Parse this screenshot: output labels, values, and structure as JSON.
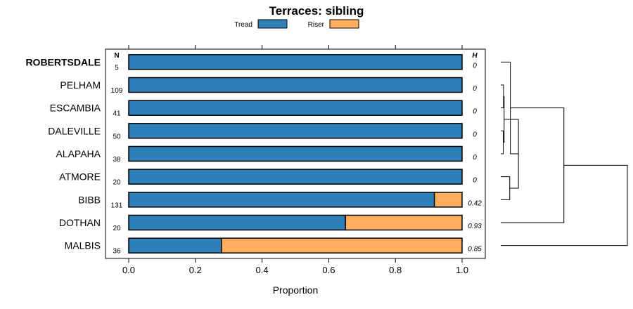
{
  "chart_data": {
    "type": "bar",
    "orientation": "horizontal",
    "stacked": true,
    "title": "Terraces: sibling",
    "xlabel": "Proportion",
    "xlim": [
      0,
      1
    ],
    "xticks": [
      "0.0",
      "0.2",
      "0.4",
      "0.6",
      "0.8",
      "1.0"
    ],
    "xtick_values": [
      0,
      0.2,
      0.4,
      0.6,
      0.8,
      1.0
    ],
    "legend_placement": "top",
    "n_header": "N",
    "h_header": "H",
    "series": [
      {
        "name": "Tread",
        "color": "#2e80b8"
      },
      {
        "name": "Riser",
        "color": "#ffad5f"
      }
    ],
    "rows": [
      {
        "category": "ROBERTSDALE",
        "bold": true,
        "n": "5",
        "h": "0",
        "values": [
          1.0,
          0.0
        ]
      },
      {
        "category": "PELHAM",
        "bold": false,
        "n": "109",
        "h": "0",
        "values": [
          1.0,
          0.0
        ]
      },
      {
        "category": "ESCAMBIA",
        "bold": false,
        "n": "41",
        "h": "0",
        "values": [
          1.0,
          0.0
        ]
      },
      {
        "category": "DALEVILLE",
        "bold": false,
        "n": "50",
        "h": "0",
        "values": [
          1.0,
          0.0
        ]
      },
      {
        "category": "ALAPAHA",
        "bold": false,
        "n": "38",
        "h": "0",
        "values": [
          1.0,
          0.0
        ]
      },
      {
        "category": "ATMORE",
        "bold": false,
        "n": "20",
        "h": "0",
        "values": [
          1.0,
          0.0
        ]
      },
      {
        "category": "BIBB",
        "bold": false,
        "n": "131",
        "h": "0.42",
        "values": [
          0.917,
          0.083
        ]
      },
      {
        "category": "DOTHAN",
        "bold": false,
        "n": "20",
        "h": "0.93",
        "values": [
          0.65,
          0.35
        ]
      },
      {
        "category": "MALBIS",
        "bold": false,
        "n": "36",
        "h": "0.85",
        "values": [
          0.278,
          0.722
        ]
      }
    ],
    "dendrogram": {
      "leaf_order": [
        "ROBERTSDALE",
        "PELHAM",
        "ESCAMBIA",
        "DALEVILLE",
        "ALAPAHA",
        "ATMORE",
        "BIBB",
        "DOTHAN",
        "MALBIS"
      ],
      "merges": [
        {
          "a": "PELHAM",
          "b": "ESCAMBIA",
          "height": 0.005
        },
        {
          "a": "DALEVILLE",
          "b": "ALAPAHA",
          "height": 0.003
        },
        {
          "a": "ATMORE",
          "b": "BIBB",
          "height": 0.055
        },
        {
          "a": "m0",
          "b": "m1",
          "height": 0.01
        },
        {
          "a": "m3",
          "b": "m2",
          "height": 0.125
        },
        {
          "a": "ROBERTSDALE",
          "b": "m4",
          "height": 0.06
        },
        {
          "a": "m5",
          "b": "DOTHAN",
          "height": 0.49
        },
        {
          "a": "m6",
          "b": "MALBIS",
          "height": 1.0
        }
      ]
    }
  }
}
